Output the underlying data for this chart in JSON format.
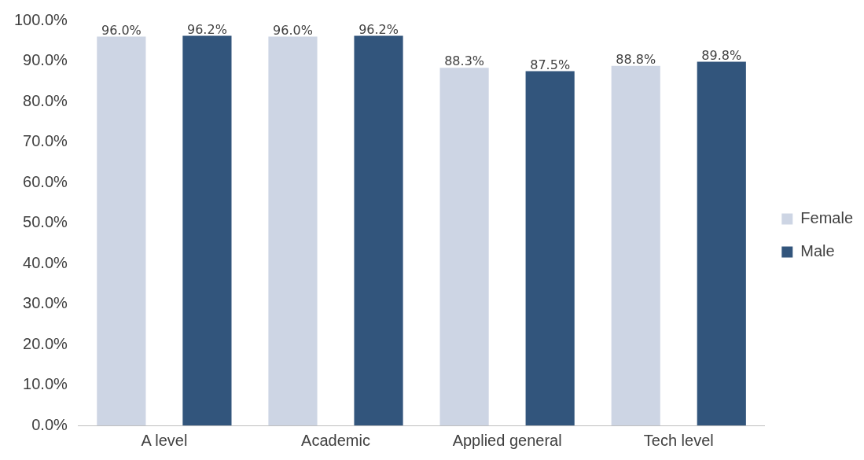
{
  "chart_data": {
    "type": "bar",
    "categories": [
      "A level",
      "Academic",
      "Applied general",
      "Tech level"
    ],
    "series": [
      {
        "name": "Female",
        "color": "#cdd5e4",
        "values": [
          96.0,
          96.0,
          88.3,
          88.8
        ],
        "value_labels": [
          "96.0%",
          "96.0%",
          "88.3%",
          "88.8%"
        ]
      },
      {
        "name": "Male",
        "color": "#32557c",
        "values": [
          96.2,
          96.2,
          87.5,
          89.8
        ],
        "value_labels": [
          "96.2%",
          "96.2%",
          "87.5%",
          "89.8%"
        ]
      }
    ],
    "ylim": [
      0,
      100
    ],
    "yticks": [
      {
        "value": 0,
        "label": "0.0%"
      },
      {
        "value": 10,
        "label": "10.0%"
      },
      {
        "value": 20,
        "label": "20.0%"
      },
      {
        "value": 30,
        "label": "30.0%"
      },
      {
        "value": 40,
        "label": "40.0%"
      },
      {
        "value": 50,
        "label": "50.0%"
      },
      {
        "value": 60,
        "label": "60.0%"
      },
      {
        "value": 70,
        "label": "70.0%"
      },
      {
        "value": 80,
        "label": "80.0%"
      },
      {
        "value": 90,
        "label": "90.0%"
      },
      {
        "value": 100,
        "label": "100.0%"
      }
    ],
    "grid": false,
    "legend": "right"
  }
}
